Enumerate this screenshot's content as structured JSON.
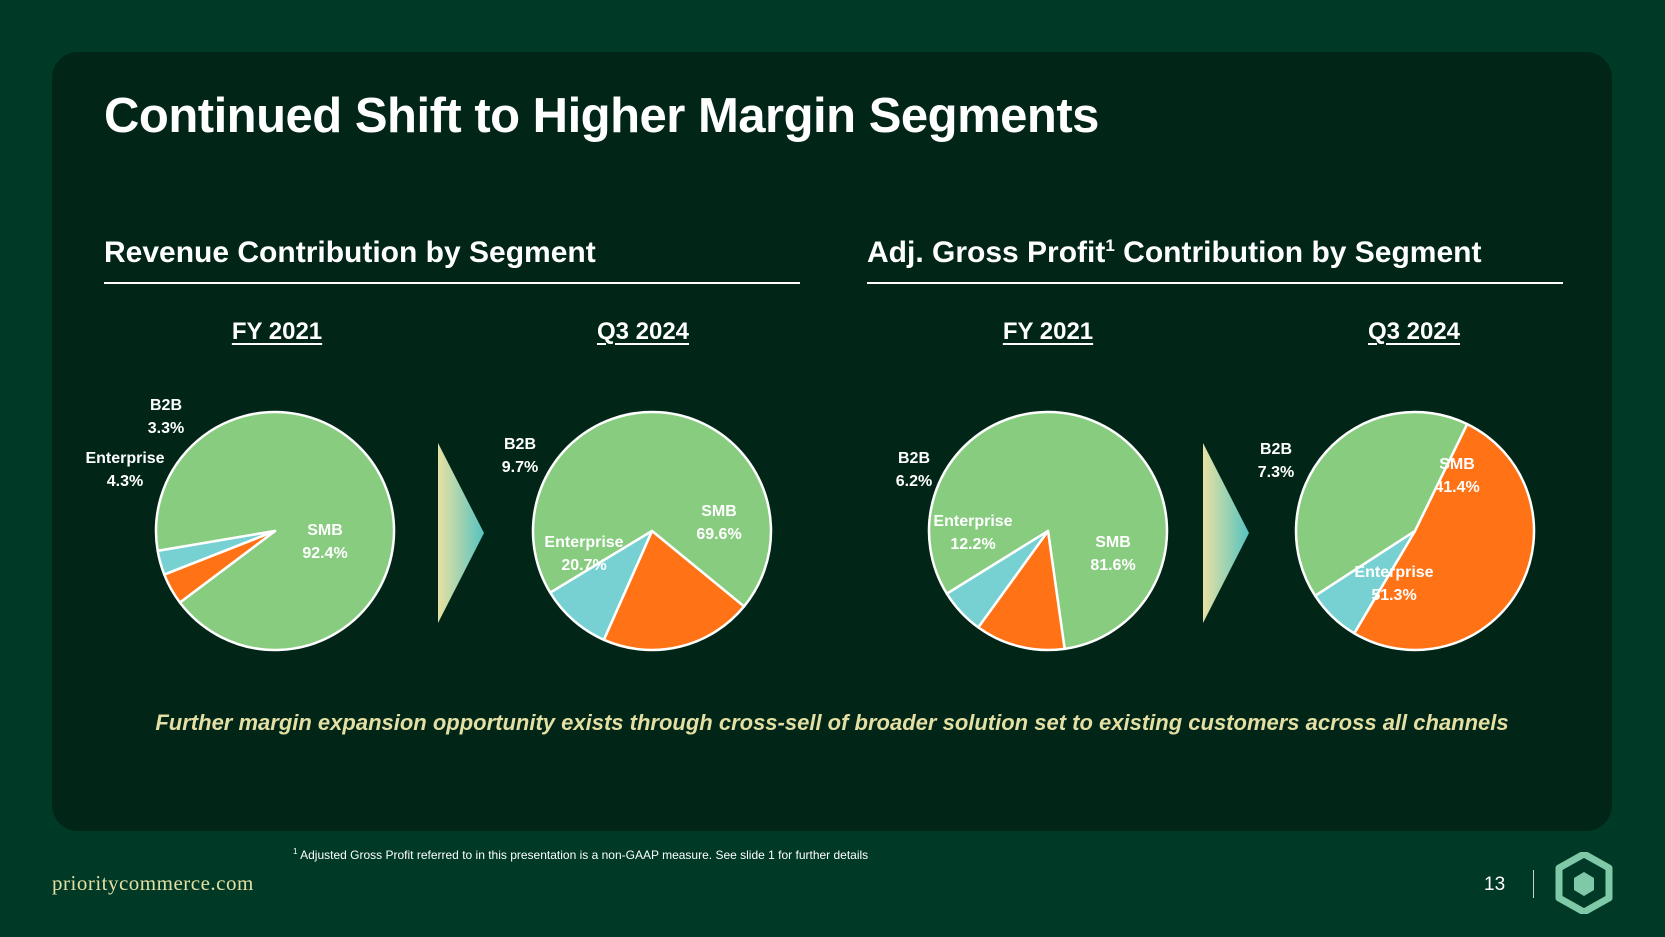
{
  "title": "Continued Shift to Higher Margin Segments",
  "sections": {
    "revenue": {
      "title": "Revenue Contribution by Segment"
    },
    "gross_profit": {
      "title_main": "Adj. Gross Profit",
      "title_sup": "1",
      "title_rest": " Contribution by Segment"
    }
  },
  "colors": {
    "SMB": "#88cc80",
    "Enterprise": "#ff7215",
    "B2B": "#77d1d3"
  },
  "chart_data": [
    {
      "type": "pie",
      "group": "Revenue Contribution by Segment",
      "title": "FY 2021",
      "slices": [
        {
          "label": "SMB",
          "value": 92.4,
          "display": "92.4%"
        },
        {
          "label": "Enterprise",
          "value": 4.3,
          "display": "4.3%"
        },
        {
          "label": "B2B",
          "value": 3.3,
          "display": "3.3%"
        }
      ]
    },
    {
      "type": "pie",
      "group": "Revenue Contribution by Segment",
      "title": "Q3 2024",
      "slices": [
        {
          "label": "SMB",
          "value": 69.6,
          "display": "69.6%"
        },
        {
          "label": "Enterprise",
          "value": 20.7,
          "display": "20.7%"
        },
        {
          "label": "B2B",
          "value": 9.7,
          "display": "9.7%"
        }
      ]
    },
    {
      "type": "pie",
      "group": "Adj. Gross Profit Contribution by Segment",
      "title": "FY 2021",
      "slices": [
        {
          "label": "SMB",
          "value": 81.6,
          "display": "81.6%"
        },
        {
          "label": "Enterprise",
          "value": 12.2,
          "display": "12.2%"
        },
        {
          "label": "B2B",
          "value": 6.2,
          "display": "6.2%"
        }
      ]
    },
    {
      "type": "pie",
      "group": "Adj. Gross Profit Contribution by Segment",
      "title": "Q3 2024",
      "slices": [
        {
          "label": "SMB",
          "value": 41.4,
          "display": "41.4%"
        },
        {
          "label": "Enterprise",
          "value": 51.3,
          "display": "51.3%"
        },
        {
          "label": "B2B",
          "value": 7.3,
          "display": "7.3%"
        }
      ]
    }
  ],
  "tagline": "Further margin expansion opportunity exists through cross-sell of broader solution set to existing customers across all channels",
  "footnote": {
    "sup": "1",
    "text": " Adjusted Gross Profit referred to in this presentation is a non-GAAP measure. See slide 1 for further details"
  },
  "footer": {
    "url": "prioritycommerce.com",
    "page_number": "13"
  }
}
